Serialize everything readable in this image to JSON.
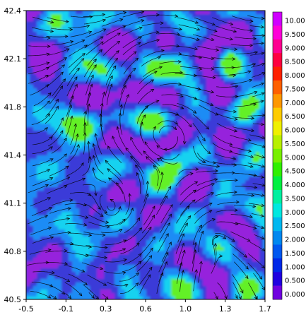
{
  "chart_data": {
    "type": "heatmap",
    "title": "",
    "xlabel": "",
    "ylabel": "",
    "xlim": [
      -0.5,
      1.7
    ],
    "ylim": [
      40.5,
      42.4
    ],
    "x_ticks": [
      "-0.5",
      "-0.1",
      "0.3",
      "0.6",
      "1.0",
      "1.3",
      "1.7"
    ],
    "y_ticks": [
      "42.4",
      "42.1",
      "41.8",
      "41.4",
      "41.1",
      "40.8",
      "40.5"
    ],
    "colorbar": {
      "levels": [
        "10.00",
        "9.500",
        "9.000",
        "8.500",
        "8.000",
        "7.500",
        "7.000",
        "6.500",
        "6.000",
        "5.500",
        "5.000",
        "4.500",
        "4.000",
        "3.500",
        "3.000",
        "2.500",
        "2.000",
        "1.500",
        "1.000",
        "0.500",
        "0.000"
      ],
      "colors": [
        "#d000ff",
        "#ff00d8",
        "#ff0090",
        "#ff0040",
        "#ff2000",
        "#ff6000",
        "#ff9800",
        "#ffcc00",
        "#f0f000",
        "#b8f000",
        "#78f000",
        "#30f000",
        "#00f040",
        "#00f0a0",
        "#00e8e0",
        "#00b8f0",
        "#0088f0",
        "#0058f0",
        "#0028e8",
        "#2000e0",
        "#7000e0"
      ]
    },
    "field_colors": {
      "low": "#3a3ad8",
      "mid": "#1e8cf5",
      "high": "#19d2f0",
      "peak": "#64f028",
      "min": "#9622dc"
    },
    "streamline_color": "#000000"
  }
}
